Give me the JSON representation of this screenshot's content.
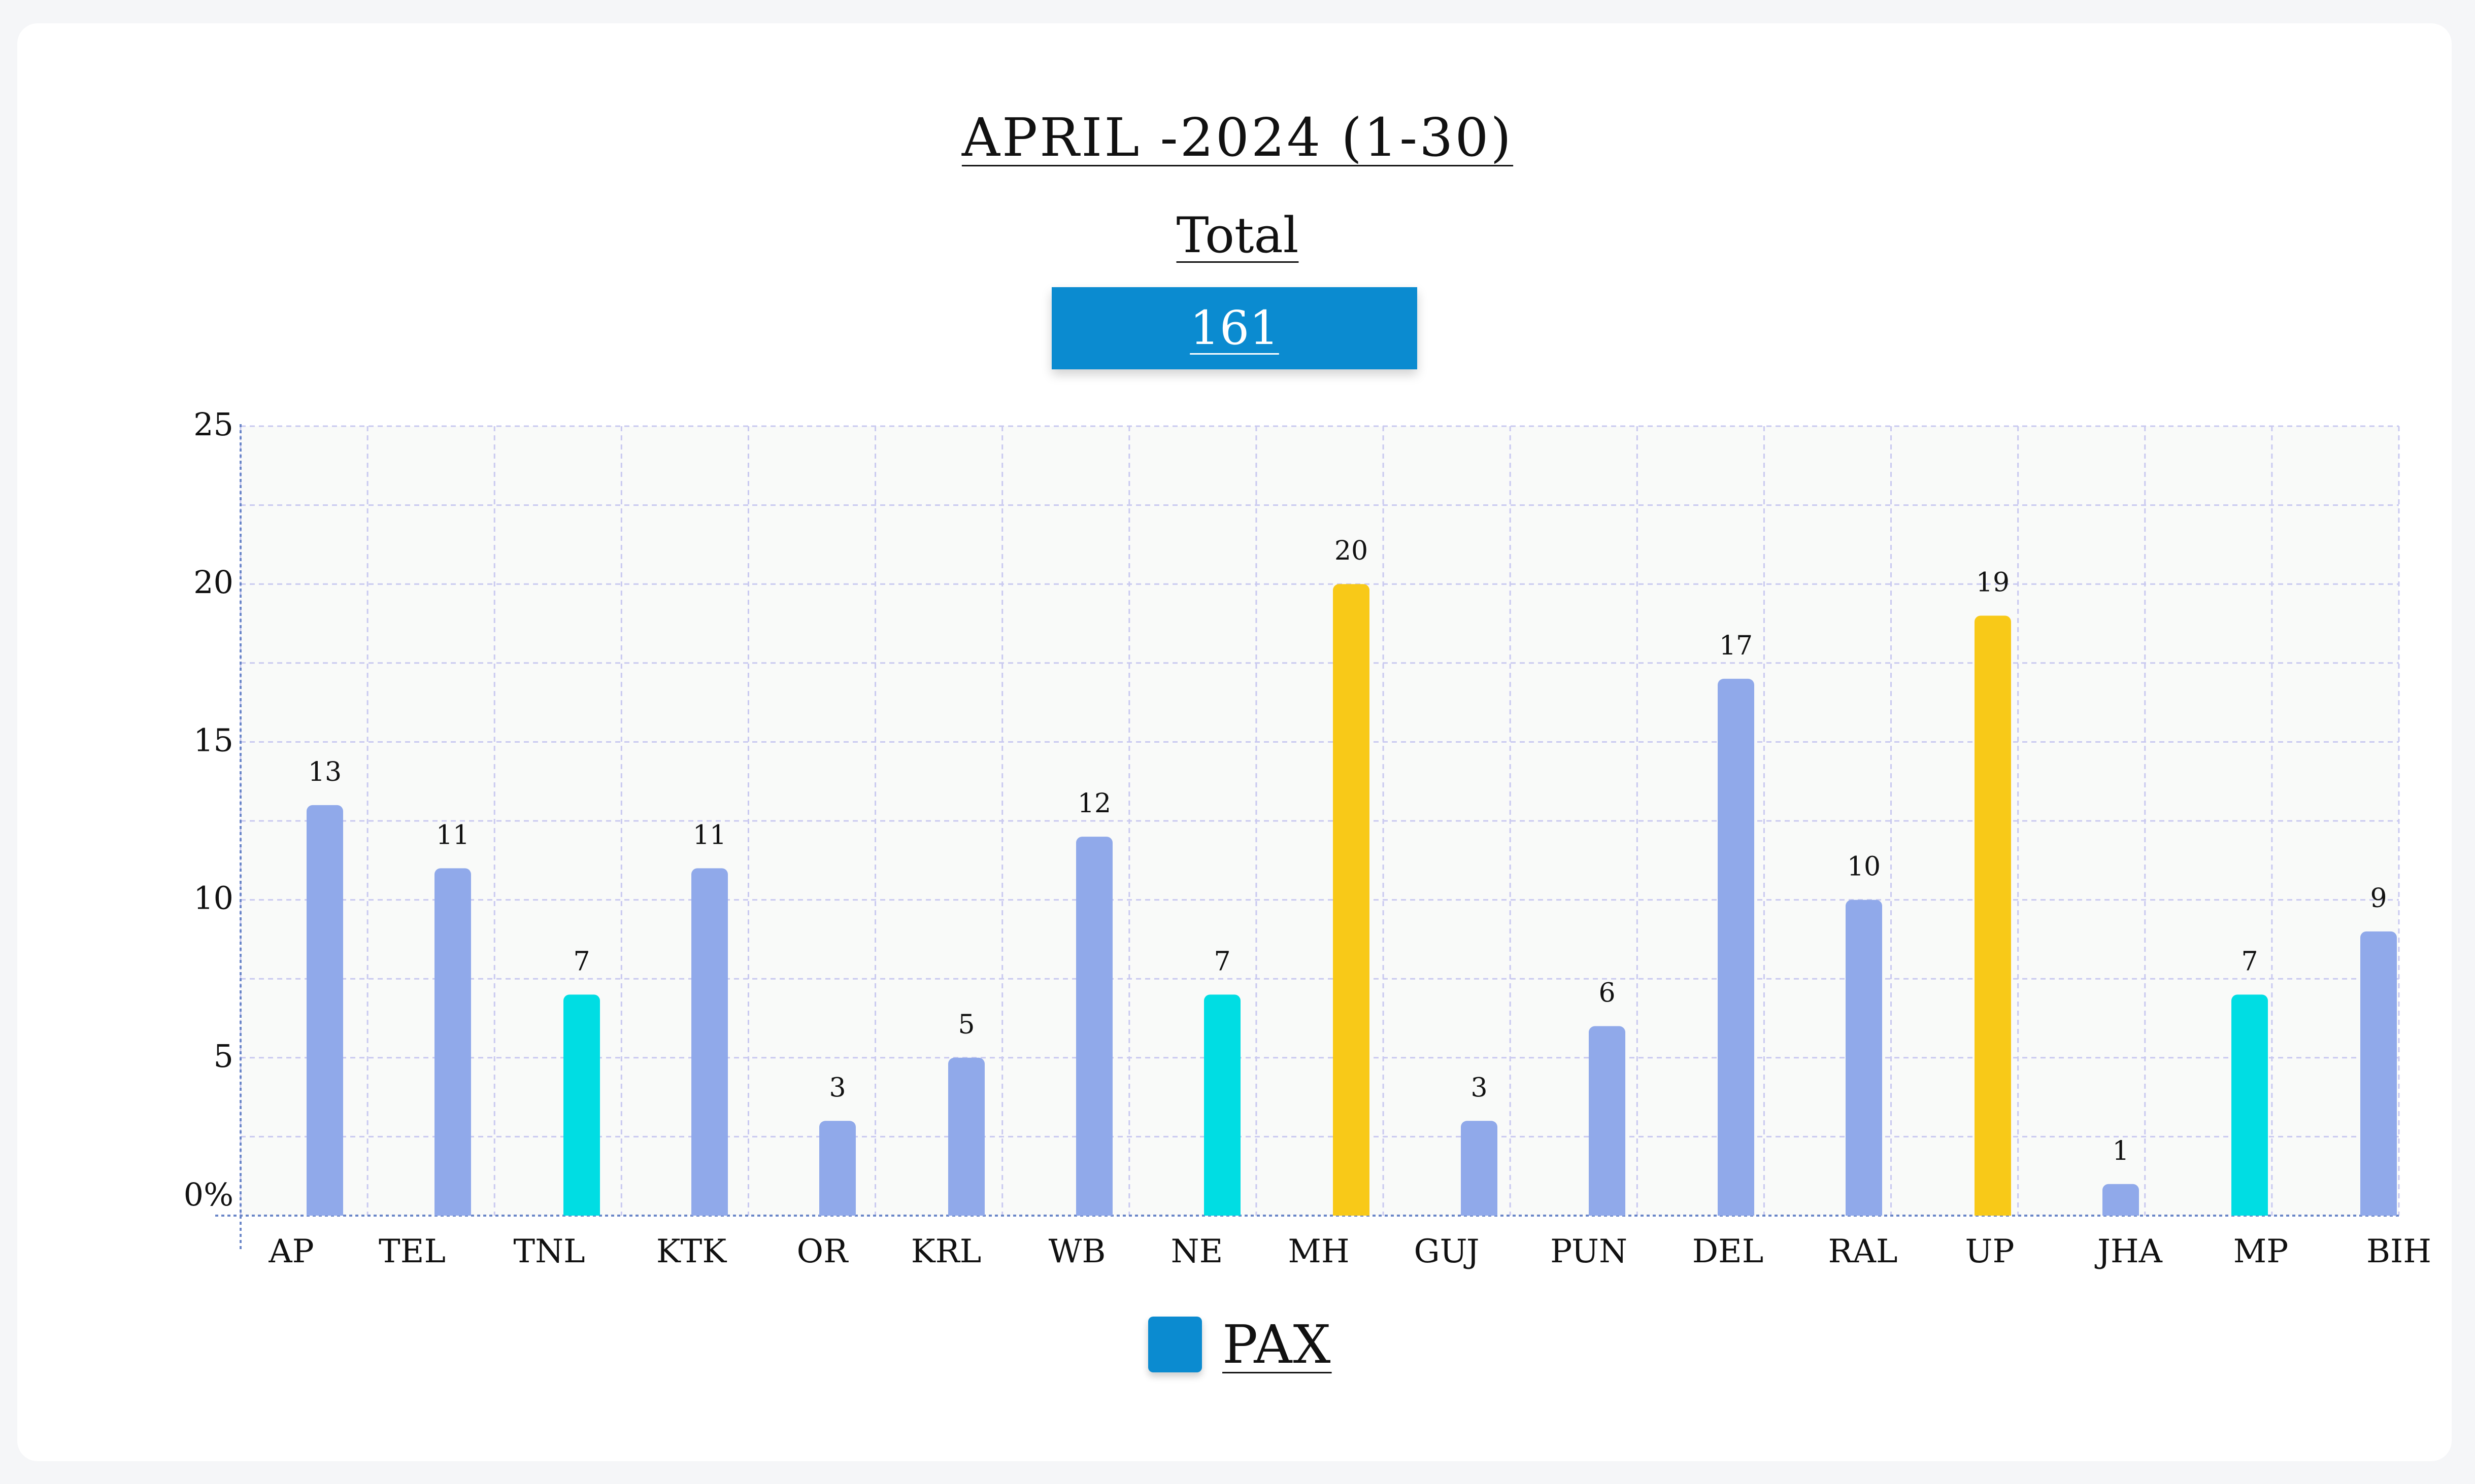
{
  "header": {
    "title": "APRIL -2024 (1-30)",
    "subtitle": "Total",
    "total_value": "161"
  },
  "legend": {
    "label": "PAX",
    "color": "#0b8bd0"
  },
  "colors": {
    "default_bar": "#90a9ea",
    "cyan_bar": "#00dde3",
    "gold_bar": "#f8c918",
    "grid": "#c9c9f0",
    "plot_bg": "#f9faf9"
  },
  "chart_data": {
    "type": "bar",
    "title": "APRIL -2024 (1-30)",
    "categories": [
      "AP",
      "TEL",
      "TNL",
      "KTK",
      "OR",
      "KRL",
      "WB",
      "NE",
      "MH",
      "GUJ",
      "PUN",
      "DEL",
      "RAL",
      "UP",
      "JHA",
      "MP",
      "BIH"
    ],
    "series": [
      {
        "name": "PAX",
        "values": [
          13,
          11,
          7,
          11,
          3,
          5,
          12,
          7,
          20,
          3,
          6,
          17,
          10,
          19,
          1,
          7,
          9
        ],
        "value_labels": [
          "13",
          "11",
          "7",
          "11",
          "3",
          "5",
          "12",
          "7",
          "20",
          "3",
          "6",
          "17",
          "10",
          "19",
          "1",
          "7",
          "9"
        ]
      }
    ],
    "bar_colors": [
      "#90a9ea",
      "#90a9ea",
      "#00dde3",
      "#90a9ea",
      "#90a9ea",
      "#90a9ea",
      "#90a9ea",
      "#00dde3",
      "#f8c918",
      "#90a9ea",
      "#90a9ea",
      "#90a9ea",
      "#90a9ea",
      "#f8c918",
      "#90a9ea",
      "#00dde3",
      "#90a9ea"
    ],
    "ylim": [
      0,
      25
    ],
    "y_ticks": [
      {
        "value": 0,
        "label": "0%"
      },
      {
        "value": 5,
        "label": "5"
      },
      {
        "value": 10,
        "label": "10"
      },
      {
        "value": 15,
        "label": "15"
      },
      {
        "value": 20,
        "label": "20"
      },
      {
        "value": 25,
        "label": "25"
      }
    ],
    "grid": true,
    "legend_position": "bottom-center"
  }
}
